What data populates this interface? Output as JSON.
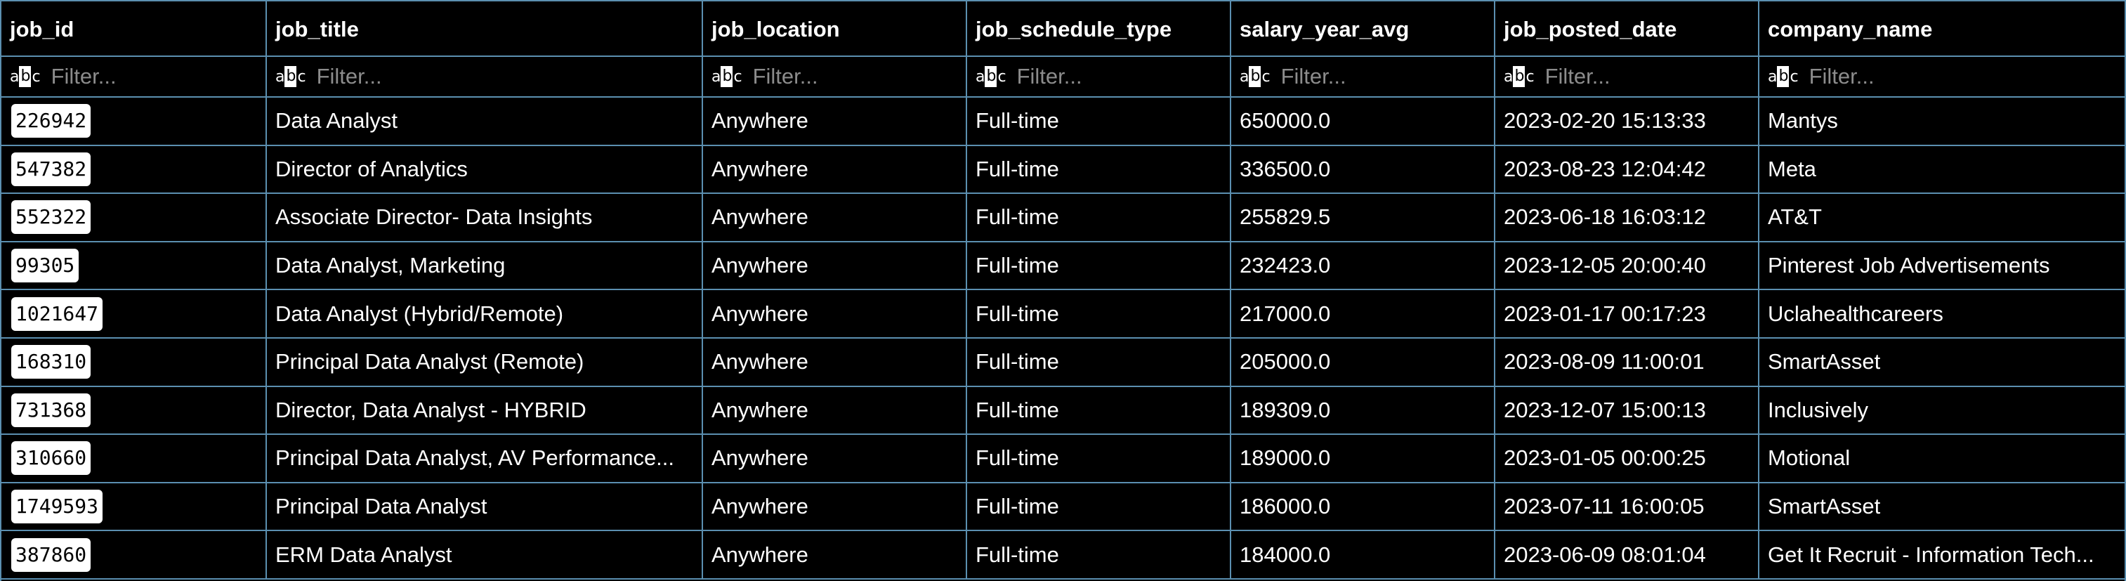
{
  "columns": [
    {
      "key": "job_id",
      "label": "job_id",
      "filter_placeholder": "Filter..."
    },
    {
      "key": "job_title",
      "label": "job_title",
      "filter_placeholder": "Filter..."
    },
    {
      "key": "job_location",
      "label": "job_location",
      "filter_placeholder": "Filter..."
    },
    {
      "key": "job_schedule_type",
      "label": "job_schedule_type",
      "filter_placeholder": "Filter..."
    },
    {
      "key": "salary_year_avg",
      "label": "salary_year_avg",
      "filter_placeholder": "Filter..."
    },
    {
      "key": "job_posted_date",
      "label": "job_posted_date",
      "filter_placeholder": "Filter..."
    },
    {
      "key": "company_name",
      "label": "company_name",
      "filter_placeholder": "Filter..."
    }
  ],
  "filter_icon_text": {
    "a": "a",
    "b": "b",
    "c": "c"
  },
  "rows": [
    {
      "job_id": "226942",
      "job_title": "Data Analyst",
      "job_location": "Anywhere",
      "job_schedule_type": "Full-time",
      "salary_year_avg": "650000.0",
      "job_posted_date": "2023-02-20 15:13:33",
      "company_name": "Mantys"
    },
    {
      "job_id": "547382",
      "job_title": "Director of Analytics",
      "job_location": "Anywhere",
      "job_schedule_type": "Full-time",
      "salary_year_avg": "336500.0",
      "job_posted_date": "2023-08-23 12:04:42",
      "company_name": "Meta"
    },
    {
      "job_id": "552322",
      "job_title": "Associate Director- Data Insights",
      "job_location": "Anywhere",
      "job_schedule_type": "Full-time",
      "salary_year_avg": "255829.5",
      "job_posted_date": "2023-06-18 16:03:12",
      "company_name": "AT&T"
    },
    {
      "job_id": "99305",
      "job_title": "Data Analyst, Marketing",
      "job_location": "Anywhere",
      "job_schedule_type": "Full-time",
      "salary_year_avg": "232423.0",
      "job_posted_date": "2023-12-05 20:00:40",
      "company_name": "Pinterest Job Advertisements"
    },
    {
      "job_id": "1021647",
      "job_title": "Data Analyst (Hybrid/Remote)",
      "job_location": "Anywhere",
      "job_schedule_type": "Full-time",
      "salary_year_avg": "217000.0",
      "job_posted_date": "2023-01-17 00:17:23",
      "company_name": "Uclahealthcareers"
    },
    {
      "job_id": "168310",
      "job_title": "Principal Data Analyst (Remote)",
      "job_location": "Anywhere",
      "job_schedule_type": "Full-time",
      "salary_year_avg": "205000.0",
      "job_posted_date": "2023-08-09 11:00:01",
      "company_name": "SmartAsset"
    },
    {
      "job_id": "731368",
      "job_title": "Director, Data Analyst - HYBRID",
      "job_location": "Anywhere",
      "job_schedule_type": "Full-time",
      "salary_year_avg": "189309.0",
      "job_posted_date": "2023-12-07 15:00:13",
      "company_name": "Inclusively"
    },
    {
      "job_id": "310660",
      "job_title": "Principal Data Analyst, AV Performance...",
      "job_location": "Anywhere",
      "job_schedule_type": "Full-time",
      "salary_year_avg": "189000.0",
      "job_posted_date": "2023-01-05 00:00:25",
      "company_name": "Motional"
    },
    {
      "job_id": "1749593",
      "job_title": "Principal Data Analyst",
      "job_location": "Anywhere",
      "job_schedule_type": "Full-time",
      "salary_year_avg": "186000.0",
      "job_posted_date": "2023-07-11 16:00:05",
      "company_name": "SmartAsset"
    },
    {
      "job_id": "387860",
      "job_title": "ERM Data Analyst",
      "job_location": "Anywhere",
      "job_schedule_type": "Full-time",
      "salary_year_avg": "184000.0",
      "job_posted_date": "2023-06-09 08:01:04",
      "company_name": "Get It Recruit - Information Tech..."
    }
  ],
  "colors": {
    "background": "#000000",
    "grid_line": "#5b8fb0",
    "text": "#ffffff",
    "placeholder": "#8c8c8c",
    "id_chip_bg": "#ffffff"
  }
}
